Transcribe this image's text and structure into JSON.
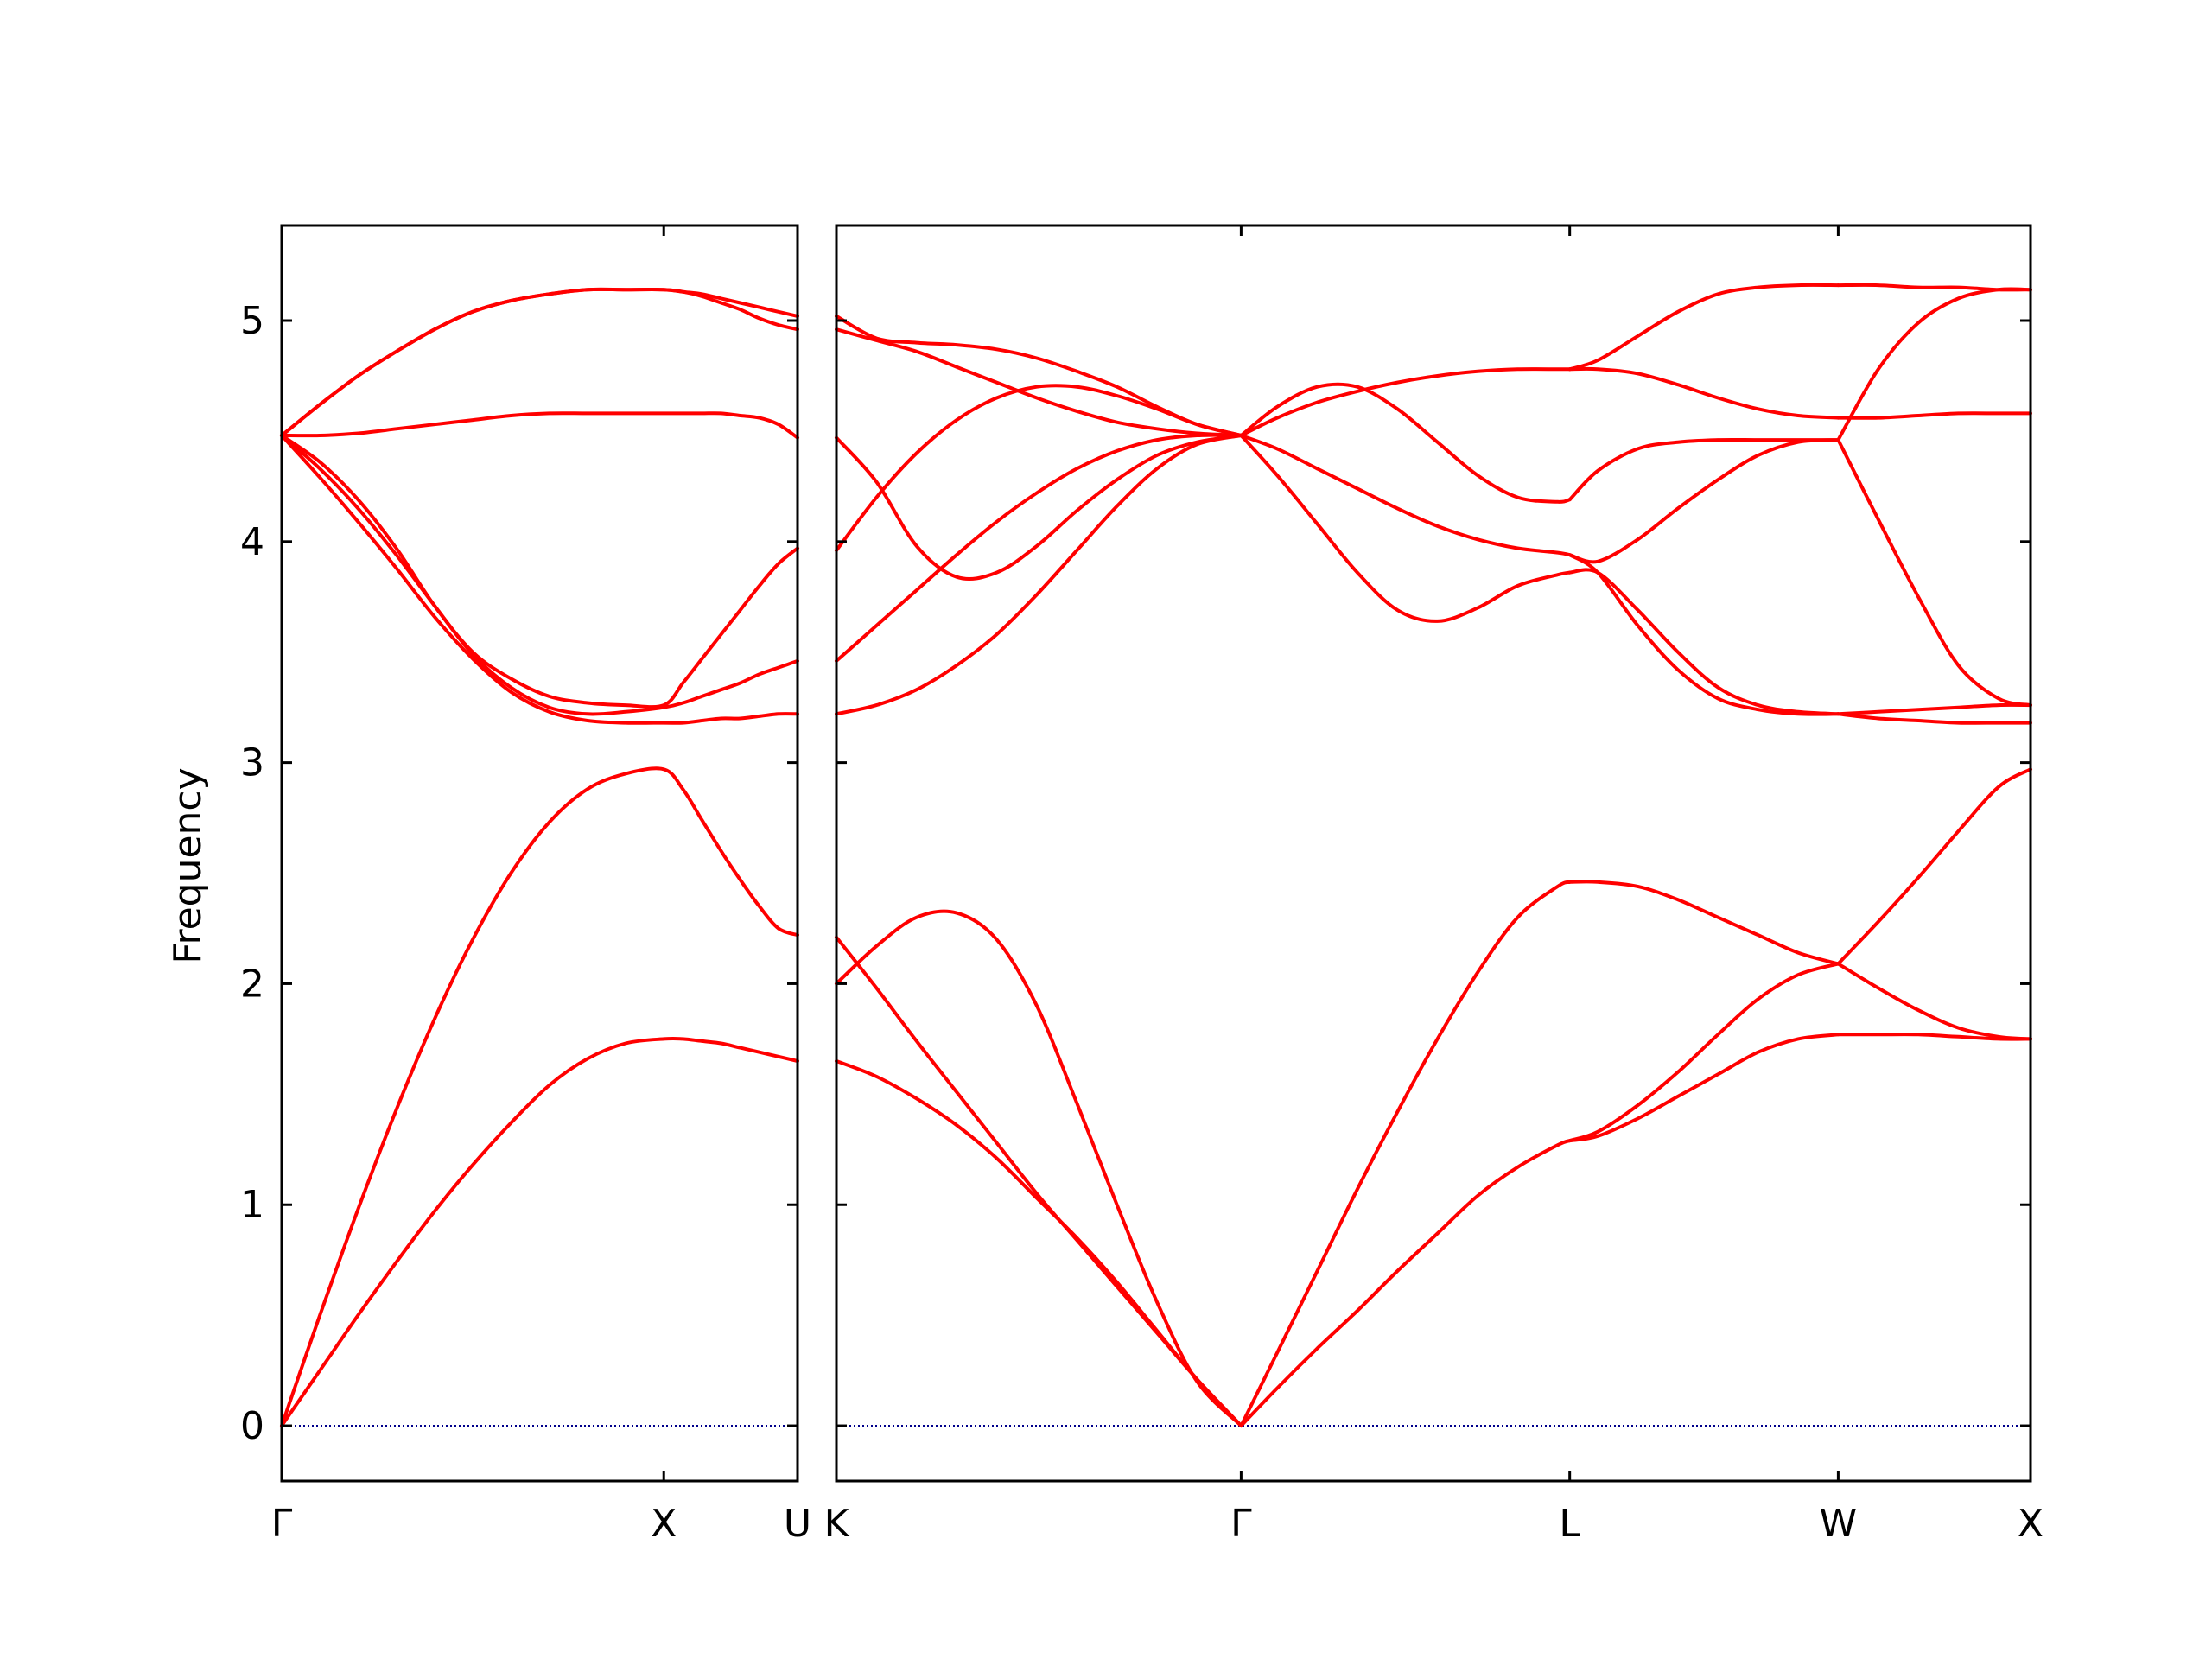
{
  "chart_data": {
    "type": "line",
    "title": "",
    "ylabel": "Frequency",
    "ylim": [
      -0.25,
      5.43
    ],
    "yticks": [
      0,
      1,
      2,
      3,
      4,
      5
    ],
    "line_color": "#ff0000",
    "zero_line_color": "#00008b",
    "grid": false,
    "panels": [
      {
        "name": "Γ–X–U",
        "xlim": [
          0,
          1.35
        ],
        "xticks": [
          {
            "x": 0,
            "label": "Γ"
          },
          {
            "x": 1.0,
            "label": "X"
          },
          {
            "x": 1.35,
            "label": "U"
          }
        ],
        "x": [
          0,
          0.1,
          0.2,
          0.3,
          0.4,
          0.5,
          0.6,
          0.7,
          0.8,
          0.9,
          1.0,
          1.05,
          1.1,
          1.15,
          1.2,
          1.25,
          1.3,
          1.35
        ],
        "series": [
          {
            "values": [
              0.0,
              0.25,
              0.5,
              0.74,
              0.97,
              1.18,
              1.37,
              1.54,
              1.66,
              1.73,
              1.75,
              1.75,
              1.74,
              1.73,
              1.71,
              1.69,
              1.67,
              1.65
            ]
          },
          {
            "values": [
              0.0,
              0.5,
              0.98,
              1.43,
              1.84,
              2.2,
              2.5,
              2.73,
              2.88,
              2.95,
              2.97,
              2.88,
              2.74,
              2.6,
              2.47,
              2.35,
              2.25,
              2.22
            ]
          },
          {
            "values": [
              4.48,
              4.29,
              4.09,
              3.88,
              3.66,
              3.47,
              3.32,
              3.23,
              3.19,
              3.18,
              3.18,
              3.18,
              3.19,
              3.2,
              3.2,
              3.21,
              3.22,
              3.22
            ]
          },
          {
            "values": [
              4.48,
              4.33,
              4.15,
              3.94,
              3.71,
              3.49,
              3.34,
              3.25,
              3.22,
              3.23,
              3.25,
              3.27,
              3.3,
              3.33,
              3.36,
              3.4,
              3.43,
              3.46
            ]
          },
          {
            "values": [
              4.48,
              4.36,
              4.19,
              3.97,
              3.71,
              3.5,
              3.38,
              3.3,
              3.27,
              3.26,
              3.26,
              3.36,
              3.47,
              3.58,
              3.69,
              3.8,
              3.9,
              3.97
            ]
          },
          {
            "values": [
              4.48,
              4.48,
              4.49,
              4.51,
              4.53,
              4.55,
              4.57,
              4.58,
              4.58,
              4.58,
              4.58,
              4.58,
              4.58,
              4.58,
              4.57,
              4.56,
              4.53,
              4.47
            ]
          },
          {
            "values": [
              4.48,
              4.62,
              4.75,
              4.86,
              4.96,
              5.04,
              5.09,
              5.12,
              5.14,
              5.14,
              5.14,
              5.13,
              5.12,
              5.1,
              5.08,
              5.06,
              5.04,
              5.02
            ]
          },
          {
            "values": [
              4.48,
              4.62,
              4.75,
              4.86,
              4.96,
              5.04,
              5.09,
              5.12,
              5.14,
              5.14,
              5.14,
              5.13,
              5.11,
              5.08,
              5.05,
              5.01,
              4.98,
              4.96
            ]
          }
        ]
      },
      {
        "name": "K–Γ–L–W–X",
        "xlim": [
          0,
          2.98
        ],
        "xticks": [
          {
            "x": 0,
            "label": "K"
          },
          {
            "x": 1.01,
            "label": "Γ"
          },
          {
            "x": 1.83,
            "label": "L"
          },
          {
            "x": 2.5,
            "label": "W"
          },
          {
            "x": 2.98,
            "label": "X"
          }
        ],
        "segments": [
          {
            "x": [
              0,
              0.1,
              0.2,
              0.3,
              0.4,
              0.5,
              0.6,
              0.7,
              0.8,
              0.9,
              1.01
            ],
            "series": [
              {
                "values": [
                  1.65,
                  1.58,
                  1.48,
                  1.36,
                  1.21,
                  1.03,
                  0.85,
                  0.65,
                  0.43,
                  0.21,
                  0.0
                ]
              },
              {
                "values": [
                  2.21,
                  1.98,
                  1.74,
                  1.51,
                  1.28,
                  1.05,
                  0.84,
                  0.63,
                  0.42,
                  0.21,
                  0.0
                ]
              },
              {
                "values": [
                  2.0,
                  2.17,
                  2.3,
                  2.32,
                  2.2,
                  1.9,
                  1.46,
                  1.0,
                  0.56,
                  0.2,
                  0.0
                ]
              },
              {
                "values": [
                  3.22,
                  3.26,
                  3.33,
                  3.44,
                  3.58,
                  3.76,
                  3.96,
                  4.16,
                  4.33,
                  4.44,
                  4.48
                ]
              },
              {
                "values": [
                  3.46,
                  3.62,
                  3.78,
                  3.94,
                  4.09,
                  4.22,
                  4.33,
                  4.41,
                  4.46,
                  4.48,
                  4.48
                ]
              },
              {
                "values": [
                  3.96,
                  4.2,
                  4.4,
                  4.55,
                  4.65,
                  4.7,
                  4.7,
                  4.66,
                  4.6,
                  4.53,
                  4.48
                ]
              },
              {
                "values": [
                  4.47,
                  4.27,
                  3.98,
                  3.84,
                  3.86,
                  3.98,
                  4.14,
                  4.28,
                  4.39,
                  4.45,
                  4.48
                ]
              },
              {
                "values": [
                  4.96,
                  4.91,
                  4.86,
                  4.79,
                  4.72,
                  4.65,
                  4.59,
                  4.54,
                  4.51,
                  4.49,
                  4.48
                ]
              },
              {
                "values": [
                  5.02,
                  4.92,
                  4.9,
                  4.89,
                  4.87,
                  4.83,
                  4.77,
                  4.7,
                  4.61,
                  4.53,
                  4.48
                ]
              }
            ]
          },
          {
            "x": [
              1.01,
              1.1,
              1.2,
              1.3,
              1.4,
              1.5,
              1.6,
              1.7,
              1.8,
              1.83
            ],
            "series": [
              {
                "values": [
                  0.0,
                  0.17,
                  0.35,
                  0.52,
                  0.7,
                  0.87,
                  1.04,
                  1.17,
                  1.27,
                  1.29
                ]
              },
              {
                "values": [
                  0.0,
                  0.33,
                  0.7,
                  1.07,
                  1.42,
                  1.75,
                  2.05,
                  2.3,
                  2.44,
                  2.46
                ]
              },
              {
                "values": [
                  4.48,
                  4.3,
                  4.08,
                  3.86,
                  3.69,
                  3.64,
                  3.7,
                  3.8,
                  3.85,
                  3.86
                ]
              },
              {
                "values": [
                  4.48,
                  4.42,
                  4.33,
                  4.24,
                  4.15,
                  4.07,
                  4.01,
                  3.97,
                  3.95,
                  3.94
                ]
              },
              {
                "values": [
                  4.48,
                  4.61,
                  4.7,
                  4.7,
                  4.6,
                  4.45,
                  4.3,
                  4.2,
                  4.18,
                  4.19
                ]
              },
              {
                "values": [
                  4.48,
                  4.56,
                  4.63,
                  4.68,
                  4.72,
                  4.75,
                  4.77,
                  4.78,
                  4.78,
                  4.78
                ]
              }
            ]
          },
          {
            "x": [
              1.83,
              1.9,
              2.0,
              2.1,
              2.2,
              2.3,
              2.4,
              2.5
            ],
            "series": [
              {
                "values": [
                  1.29,
                  1.31,
                  1.39,
                  1.49,
                  1.59,
                  1.69,
                  1.75,
                  1.77
                ]
              },
              {
                "values": [
                  1.29,
                  1.33,
                  1.45,
                  1.6,
                  1.77,
                  1.93,
                  2.04,
                  2.09
                ]
              },
              {
                "values": [
                  2.46,
                  2.46,
                  2.44,
                  2.38,
                  2.3,
                  2.22,
                  2.14,
                  2.09
                ]
              },
              {
                "values": [
                  3.94,
                  3.86,
                  3.62,
                  3.42,
                  3.29,
                  3.24,
                  3.22,
                  3.22
                ]
              },
              {
                "values": [
                  3.86,
                  3.86,
                  3.69,
                  3.5,
                  3.34,
                  3.26,
                  3.23,
                  3.22
                ]
              },
              {
                "values": [
                  3.94,
                  3.91,
                  4.01,
                  4.15,
                  4.28,
                  4.39,
                  4.45,
                  4.46
                ]
              },
              {
                "values": [
                  4.19,
                  4.32,
                  4.42,
                  4.45,
                  4.46,
                  4.46,
                  4.46,
                  4.46
                ]
              },
              {
                "values": [
                  4.78,
                  4.78,
                  4.76,
                  4.71,
                  4.65,
                  4.6,
                  4.57,
                  4.56
                ]
              },
              {
                "values": [
                  4.78,
                  4.82,
                  4.93,
                  5.04,
                  5.12,
                  5.15,
                  5.16,
                  5.16
                ]
              }
            ]
          },
          {
            "x": [
              2.5,
              2.6,
              2.7,
              2.8,
              2.9,
              2.98
            ],
            "series": [
              {
                "values": [
                  1.77,
                  1.77,
                  1.77,
                  1.76,
                  1.75,
                  1.75
                ]
              },
              {
                "values": [
                  2.09,
                  1.98,
                  1.88,
                  1.8,
                  1.76,
                  1.75
                ]
              },
              {
                "values": [
                  2.09,
                  2.28,
                  2.48,
                  2.69,
                  2.89,
                  2.97
                ]
              },
              {
                "values": [
                  3.22,
                  3.2,
                  3.19,
                  3.18,
                  3.18,
                  3.18
                ]
              },
              {
                "values": [
                  3.22,
                  3.23,
                  3.24,
                  3.25,
                  3.26,
                  3.26
                ]
              },
              {
                "values": [
                  4.46,
                  4.1,
                  3.75,
                  3.44,
                  3.29,
                  3.26
                ]
              },
              {
                "values": [
                  4.56,
                  4.56,
                  4.57,
                  4.58,
                  4.58,
                  4.58
                ]
              },
              {
                "values": [
                  4.46,
                  4.78,
                  4.99,
                  5.1,
                  5.14,
                  5.14
                ]
              },
              {
                "values": [
                  5.16,
                  5.16,
                  5.15,
                  5.15,
                  5.14,
                  5.14
                ]
              }
            ]
          }
        ]
      }
    ]
  }
}
